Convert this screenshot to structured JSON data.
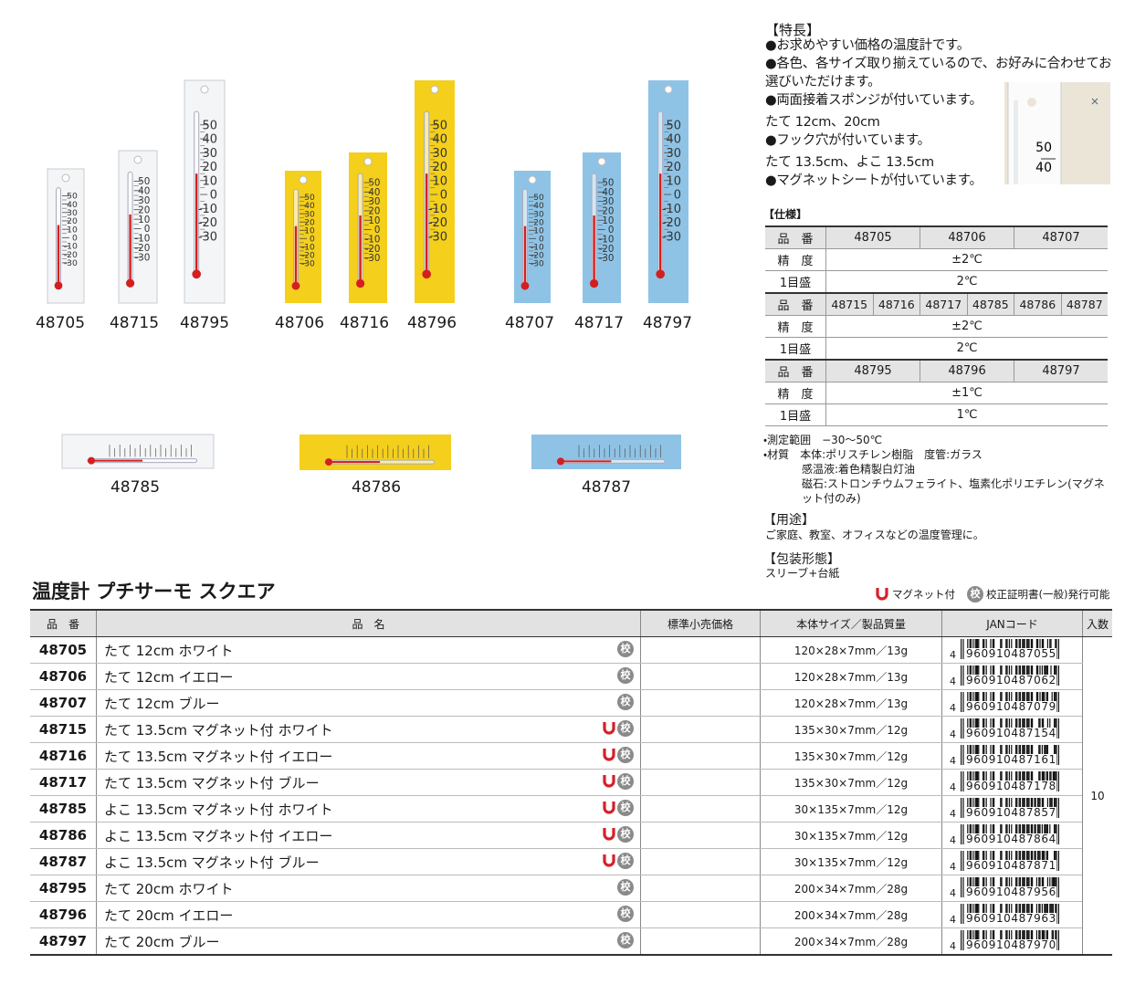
{
  "thermo_scale": [
    "50",
    "40",
    "30",
    "20",
    "10",
    "0",
    "-10",
    "-20",
    "-30"
  ],
  "images": [
    "48705",
    "48715",
    "48795",
    "48706",
    "48716",
    "48796",
    "48707",
    "48717",
    "48797",
    "48785",
    "48786",
    "48787"
  ],
  "features": {
    "heading": "【特長】",
    "lines": [
      "●お求めやすい価格の温度計です。",
      "●各色、各サイズ取り揃えているので、お好みに合わせてお選びいただけます。",
      "●両面接着スポンジが付いています。",
      "たて 12cm、20cm",
      "●フック穴が付いています。",
      "たて 13.5cm、よこ 13.5cm",
      "●マグネットシートが付いています。"
    ]
  },
  "spec": {
    "title": "【仕様】",
    "labels": {
      "code": "品　番",
      "accuracy": "精　度",
      "division": "1目盛"
    },
    "blocks": [
      {
        "codes": [
          "48705",
          "48706",
          "48707"
        ],
        "accuracy": "±2℃",
        "division": "2℃"
      },
      {
        "codes": [
          "48715",
          "48716",
          "48717",
          "48785",
          "48786",
          "48787"
        ],
        "accuracy": "±2℃",
        "division": "2℃"
      },
      {
        "codes": [
          "48795",
          "48796",
          "48797"
        ],
        "accuracy": "±1℃",
        "division": "1℃"
      }
    ]
  },
  "notes": [
    "・測定範囲　−30〜50℃",
    "・材質　本体:ポリスチレン樹脂　度管:ガラス",
    "感温液:着色精製白灯油",
    "磁石:ストロンチウムフェライト、塩素化ポリエチレン(マグネット付のみ)"
  ],
  "usage": {
    "heading": "【用途】",
    "text": "ご家庭、教室、オフィスなどの温度管理に。"
  },
  "packaging": {
    "heading": "【包装形態】",
    "text": "スリーブ+台紙"
  },
  "product_title": "温度計 プチサーモ スクエア",
  "legend": {
    "magnet": "マグネット付",
    "kou_icon": "校",
    "certificate": "校正証明書(一般)発行可能"
  },
  "table": {
    "headers": [
      "品　番",
      "品　名",
      "標準小売価格",
      "本体サイズ／製品質量",
      "JANコード",
      "入数"
    ],
    "quantity": "10",
    "rows": [
      {
        "code": "48705",
        "name": "たて 12cm ホワイト",
        "size": "120×28×7mm／13g",
        "jan_lead": "4",
        "jan": "960910487055",
        "magnet": false
      },
      {
        "code": "48706",
        "name": "たて 12cm イエロー",
        "size": "120×28×7mm／13g",
        "jan_lead": "4",
        "jan": "960910487062",
        "magnet": false
      },
      {
        "code": "48707",
        "name": "たて 12cm ブルー",
        "size": "120×28×7mm／13g",
        "jan_lead": "4",
        "jan": "960910487079",
        "magnet": false
      },
      {
        "code": "48715",
        "name": "たて 13.5cm マグネット付 ホワイト",
        "size": "135×30×7mm／12g",
        "jan_lead": "4",
        "jan": "960910487154",
        "magnet": true
      },
      {
        "code": "48716",
        "name": "たて 13.5cm マグネット付 イエロー",
        "size": "135×30×7mm／12g",
        "jan_lead": "4",
        "jan": "960910487161",
        "magnet": true
      },
      {
        "code": "48717",
        "name": "たて 13.5cm マグネット付 ブルー",
        "size": "135×30×7mm／12g",
        "jan_lead": "4",
        "jan": "960910487178",
        "magnet": true
      },
      {
        "code": "48785",
        "name": "よこ 13.5cm マグネット付 ホワイト",
        "size": "30×135×7mm／12g",
        "jan_lead": "4",
        "jan": "960910487857",
        "magnet": true
      },
      {
        "code": "48786",
        "name": "よこ 13.5cm マグネット付 イエロー",
        "size": "30×135×7mm／12g",
        "jan_lead": "4",
        "jan": "960910487864",
        "magnet": true
      },
      {
        "code": "48787",
        "name": "よこ 13.5cm マグネット付 ブルー",
        "size": "30×135×7mm／12g",
        "jan_lead": "4",
        "jan": "960910487871",
        "magnet": true
      },
      {
        "code": "48795",
        "name": "たて 20cm ホワイト",
        "size": "200×34×7mm／28g",
        "jan_lead": "4",
        "jan": "960910487956",
        "magnet": false
      },
      {
        "code": "48796",
        "name": "たて 20cm イエロー",
        "size": "200×34×7mm／28g",
        "jan_lead": "4",
        "jan": "960910487963",
        "magnet": false
      },
      {
        "code": "48797",
        "name": "たて 20cm ブルー",
        "size": "200×34×7mm／28g",
        "jan_lead": "4",
        "jan": "960910487970",
        "magnet": false
      }
    ]
  }
}
